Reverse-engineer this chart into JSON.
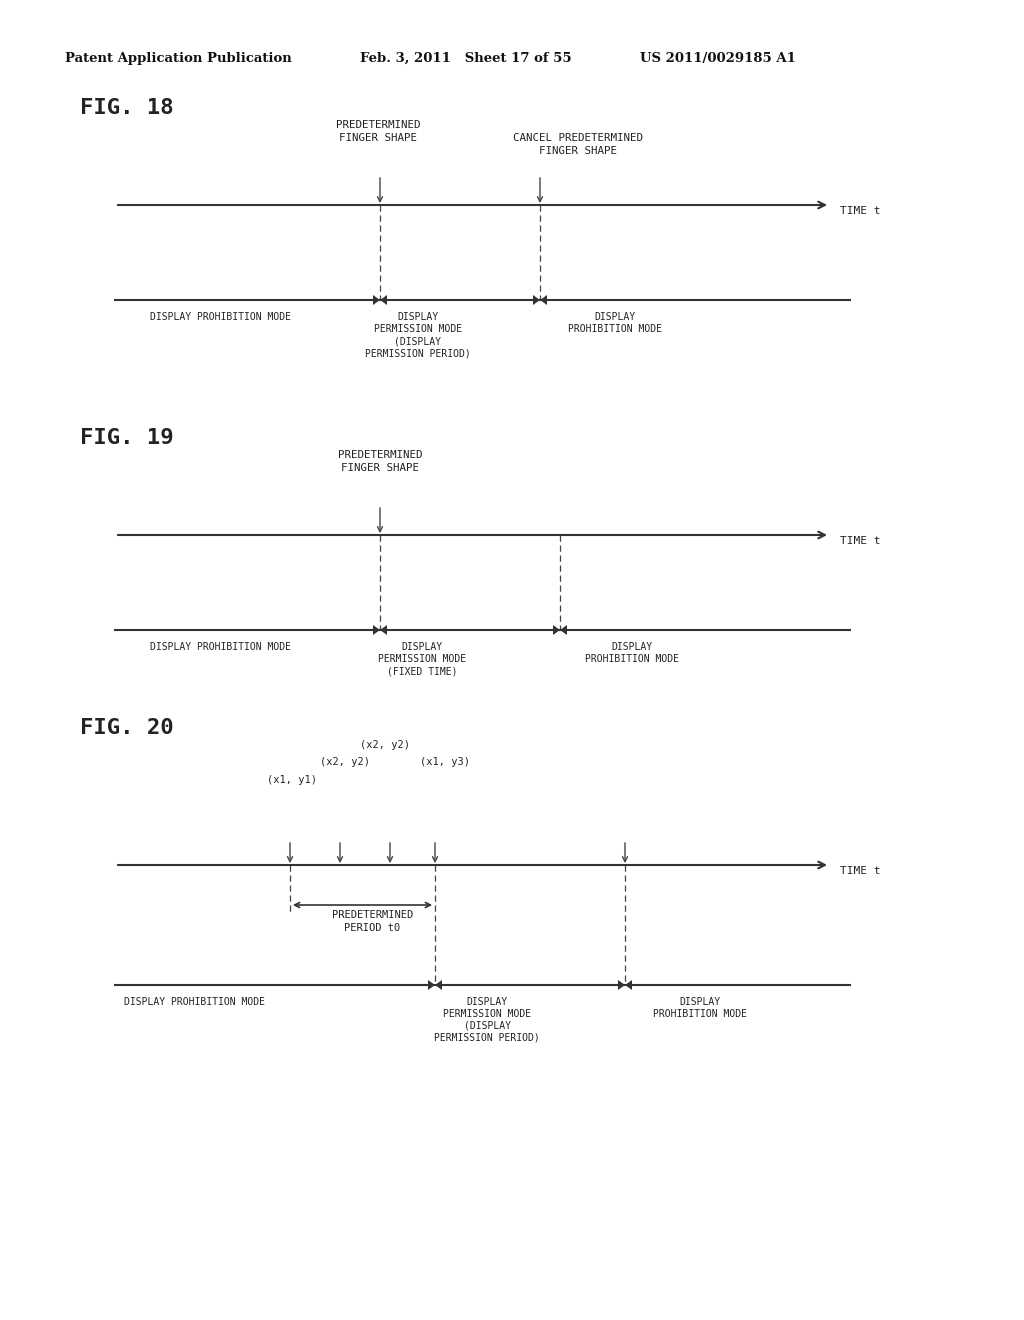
{
  "bg_color": "#ffffff",
  "header_left": "Patent Application Publication",
  "header_mid": "Feb. 3, 2011   Sheet 17 of 55",
  "header_right": "US 2011/0029185 A1",
  "fig18_label": "FIG. 18",
  "fig19_label": "FIG. 19",
  "fig20_label": "FIG. 20",
  "time_label": "TIME t",
  "fig18_label1_line1": "PREDETERMINED",
  "fig18_label1_line2": "FINGER SHAPE",
  "fig18_label2_line1": "CANCEL PREDETERMINED",
  "fig18_label2_line2": "FINGER SHAPE",
  "fig18_left_mode": "DISPLAY PROHIBITION MODE",
  "fig18_mid_mode_l1": "DISPLAY",
  "fig18_mid_mode_l2": "PERMISSION MODE",
  "fig18_mid_mode_l3": "(DISPLAY",
  "fig18_mid_mode_l4": "PERMISSION PERIOD)",
  "fig18_right_mode_l1": "DISPLAY",
  "fig18_right_mode_l2": "PROHIBITION MODE",
  "fig19_label1_line1": "PREDETERMINED",
  "fig19_label1_line2": "FINGER SHAPE",
  "fig19_left_mode": "DISPLAY PROHIBITION MODE",
  "fig19_mid_mode_l1": "DISPLAY",
  "fig19_mid_mode_l2": "PERMISSION MODE",
  "fig19_mid_mode_l3": "(FIXED TIME)",
  "fig19_right_mode_l1": "DISPLAY",
  "fig19_right_mode_l2": "PROHIBITION MODE",
  "fig20_lbl1": "(x1, y1)",
  "fig20_lbl2a": "(x2, y2)",
  "fig20_lbl2b": "(x2, y2)",
  "fig20_lbl3": "(x1, y3)",
  "fig20_period_l1": "PREDETERMINED",
  "fig20_period_l2": "PERIOD t0",
  "fig20_left_mode": "DISPLAY PROHIBITION MODE",
  "fig20_mid_mode_l1": "DISPLAY",
  "fig20_mid_mode_l2": "PERMISSION MODE",
  "fig20_mid_mode_l3": "(DISPLAY",
  "fig20_mid_mode_l4": "PERMISSION PERIOD)",
  "fig20_right_mode_l1": "DISPLAY",
  "fig20_right_mode_l2": "PROHIBITION MODE"
}
